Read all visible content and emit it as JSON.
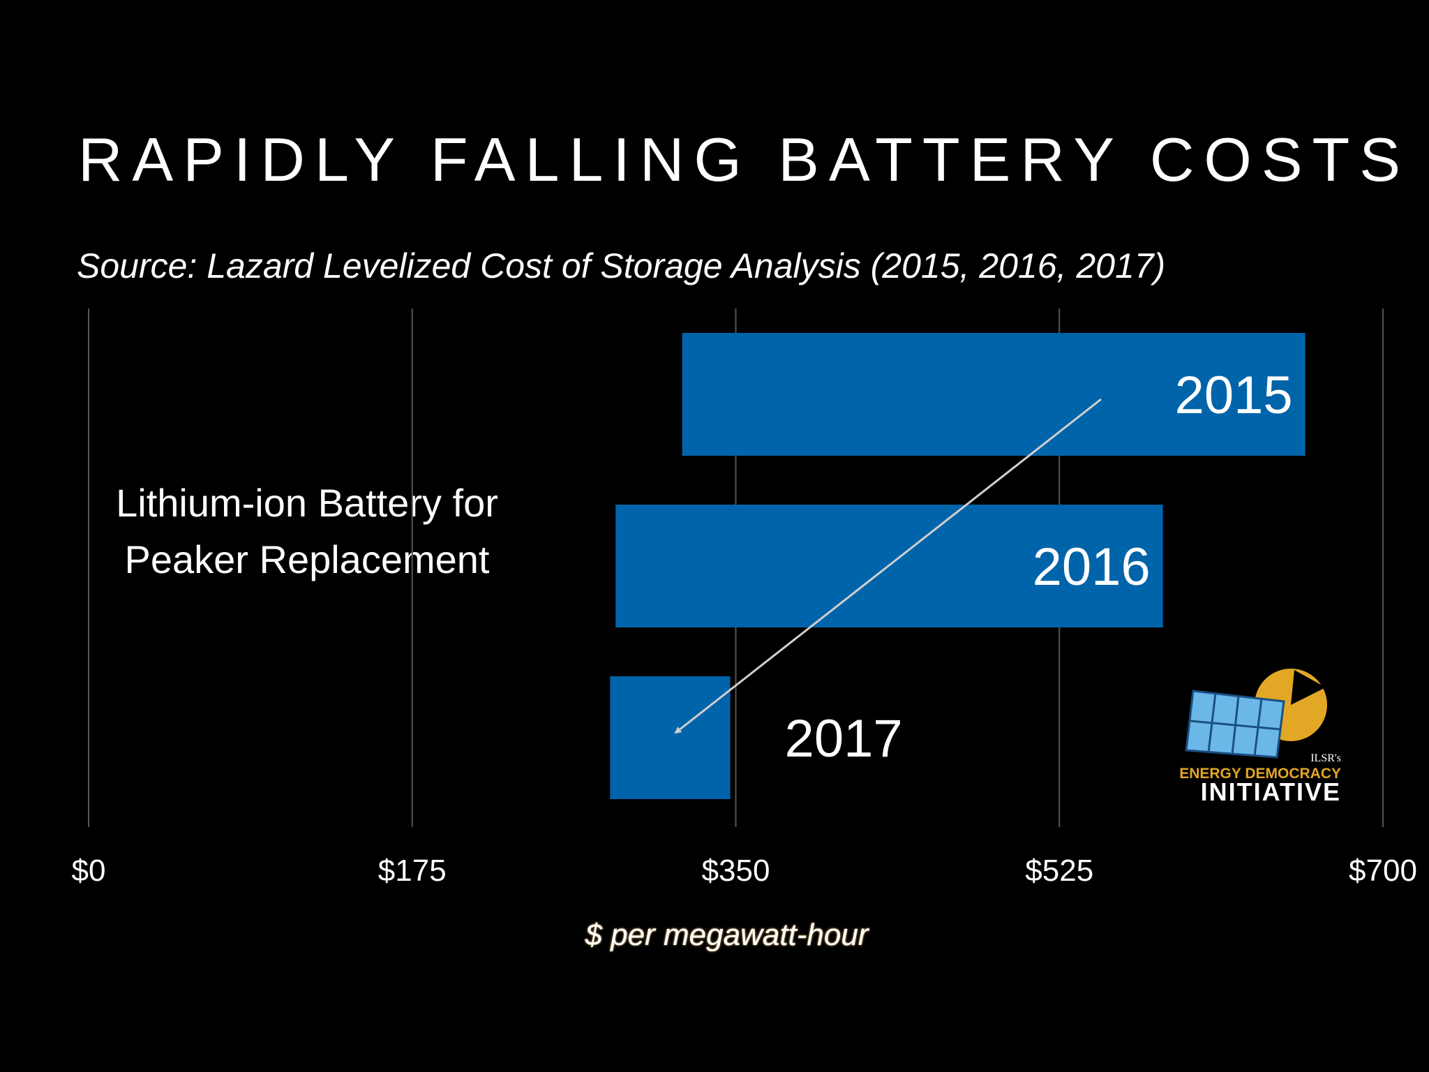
{
  "chart_data": {
    "type": "bar",
    "orientation": "horizontal",
    "title": "RAPIDLY FALLING BATTERY COSTS",
    "subtitle": "Source: Lazard Levelized Cost of Storage Analysis (2015, 2016, 2017)",
    "category": "Lithium-ion Battery for Peaker Replacement",
    "xlabel": "$ per megawatt-hour",
    "xlim": [
      0,
      700
    ],
    "xticks": [
      0,
      175,
      350,
      525,
      700
    ],
    "xtick_labels": [
      "$0",
      "$175",
      "$350",
      "$525",
      "$700"
    ],
    "grid": true,
    "bar_color": "#0064aa",
    "series": [
      {
        "label": "2015",
        "low": 321,
        "high": 658
      },
      {
        "label": "2016",
        "low": 285,
        "high": 581
      },
      {
        "label": "2017",
        "low": 282,
        "high": 347
      }
    ]
  },
  "logo": {
    "line1": "ILSR's",
    "line2": "ENERGY DEMOCRACY",
    "line3": "INITIATIVE"
  }
}
